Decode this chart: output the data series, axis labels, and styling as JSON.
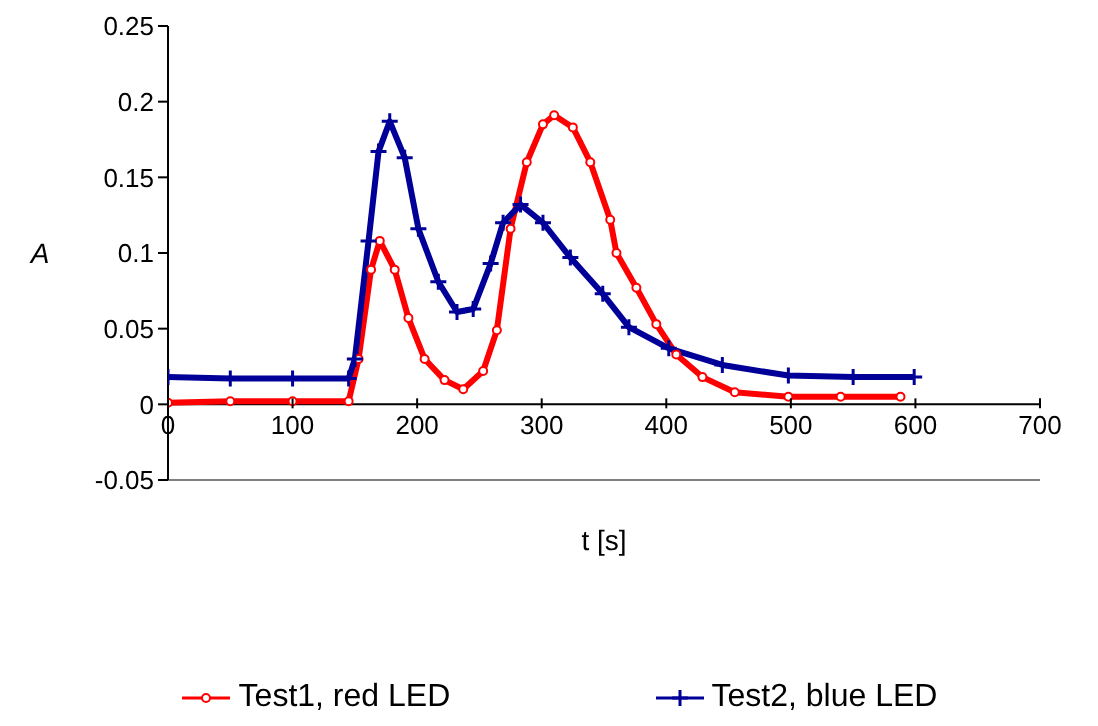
{
  "chart_data": {
    "type": "line",
    "xlabel": "t [s]",
    "ylabel": "A",
    "xlim": [
      0,
      700
    ],
    "xticks": [
      0,
      100,
      200,
      300,
      400,
      500,
      600,
      700
    ],
    "ylim": [
      -0.05,
      0.25
    ],
    "yticks": [
      -0.05,
      0,
      0.05,
      0.1,
      0.15,
      0.2,
      0.25
    ],
    "legend": "bottom",
    "line_style": "solid",
    "series": [
      {
        "name": "Test1, red LED",
        "color": "#ff0000",
        "marker": "circle",
        "x": [
          0,
          50,
          100,
          145,
          153,
          163,
          170,
          182,
          193,
          206,
          222,
          237,
          253,
          264,
          275,
          288,
          301,
          310,
          325,
          339,
          355,
          360,
          376,
          392,
          408,
          429,
          455,
          498,
          540,
          588
        ],
        "values": [
          0.001,
          0.002,
          0.002,
          0.002,
          0.03,
          0.089,
          0.108,
          0.089,
          0.057,
          0.03,
          0.016,
          0.01,
          0.022,
          0.049,
          0.116,
          0.16,
          0.185,
          0.191,
          0.183,
          0.16,
          0.122,
          0.1,
          0.077,
          0.053,
          0.033,
          0.018,
          0.008,
          0.005,
          0.005,
          0.005
        ]
      },
      {
        "name": "Test2, blue LED",
        "color": "#000099",
        "marker": "cross",
        "x": [
          0,
          50,
          100,
          145,
          150,
          161,
          169,
          178,
          190,
          201,
          217,
          232,
          245,
          259,
          269,
          283,
          301,
          323,
          349,
          370,
          402,
          445,
          498,
          550,
          599
        ],
        "values": [
          0.018,
          0.017,
          0.017,
          0.017,
          0.03,
          0.108,
          0.167,
          0.187,
          0.163,
          0.116,
          0.081,
          0.061,
          0.063,
          0.093,
          0.12,
          0.132,
          0.12,
          0.097,
          0.073,
          0.051,
          0.037,
          0.026,
          0.019,
          0.018,
          0.018
        ]
      }
    ]
  }
}
